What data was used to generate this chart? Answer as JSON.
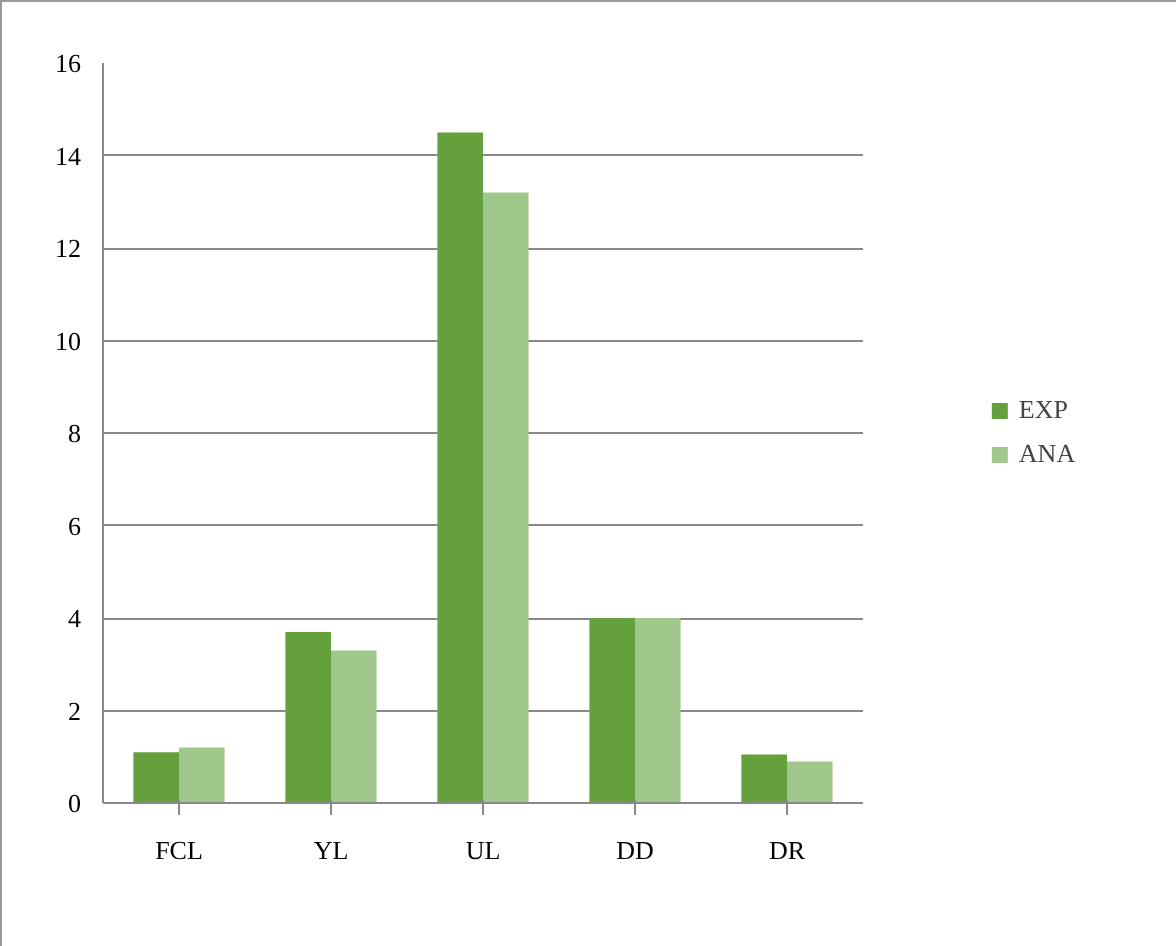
{
  "chart_data": {
    "type": "bar",
    "categories": [
      "FCL",
      "YL",
      "UL",
      "DD",
      "DR"
    ],
    "series": [
      {
        "name": "EXP",
        "color": "#64a03c",
        "values": [
          1.1,
          3.7,
          14.5,
          4.0,
          1.05
        ]
      },
      {
        "name": "ANA",
        "color": "#a0c88c",
        "values": [
          1.2,
          3.3,
          13.2,
          4.0,
          0.9
        ]
      }
    ],
    "ylim": [
      0,
      16
    ],
    "yticks": [
      0,
      2,
      4,
      6,
      8,
      10,
      12,
      14,
      16
    ],
    "grid": "y",
    "legend": "right"
  }
}
